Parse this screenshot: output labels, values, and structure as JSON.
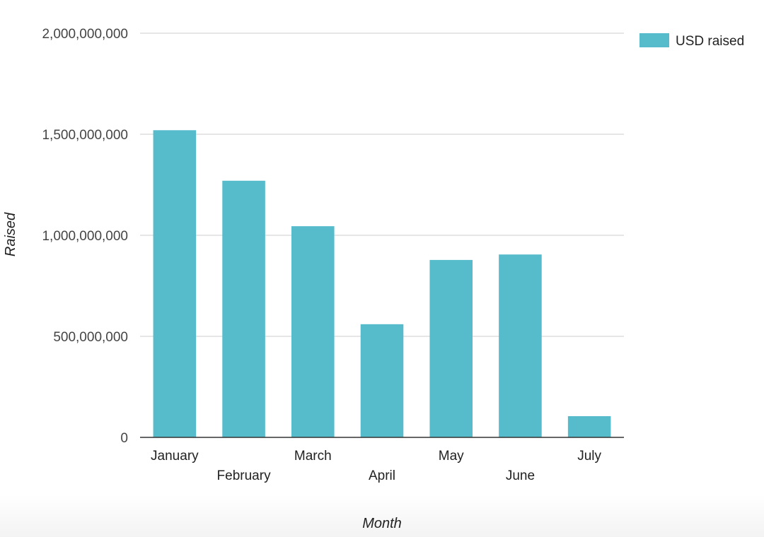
{
  "chart_data": {
    "type": "bar",
    "title": "",
    "xlabel": "Month",
    "ylabel": "Raised",
    "categories": [
      "January",
      "February",
      "March",
      "April",
      "May",
      "June",
      "July"
    ],
    "series": [
      {
        "name": "USD raised",
        "color": "#56bccc",
        "values": [
          1520000000,
          1270000000,
          1045000000,
          560000000,
          878000000,
          905000000,
          105000000
        ]
      }
    ],
    "ylim": [
      0,
      2000000000
    ],
    "yticks": [
      0,
      500000000,
      1000000000,
      1500000000,
      2000000000
    ],
    "ytick_labels": [
      "0",
      "500,000,000",
      "1,000,000,000",
      "1,500,000,000",
      "2,000,000,000"
    ],
    "grid": true,
    "legend": "right",
    "gridline_color": "#cccccc",
    "axis_color": "#333333"
  }
}
